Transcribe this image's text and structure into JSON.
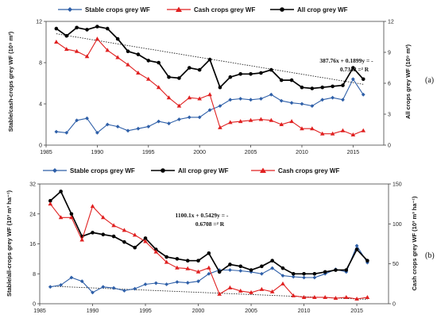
{
  "chart_data": [
    {
      "type": "line",
      "panel_label": "(a)",
      "x": [
        1986,
        1987,
        1988,
        1989,
        1990,
        1991,
        1992,
        1993,
        1994,
        1995,
        1996,
        1997,
        1998,
        1999,
        2000,
        2001,
        2002,
        2003,
        2004,
        2005,
        2006,
        2007,
        2008,
        2009,
        2010,
        2011,
        2012,
        2013,
        2014,
        2015,
        2016
      ],
      "xlim": [
        1985,
        2018
      ],
      "xticks": [
        1985,
        1990,
        1995,
        2000,
        2005,
        2010,
        2015
      ],
      "ylabel": "Stable/cash-crops grey WF (10⁹ m³)",
      "y2label": "All crops grey WF (10⁹ m³)",
      "ylim": [
        0,
        12
      ],
      "yticks": [
        0,
        4,
        8,
        12
      ],
      "y2lim": [
        0,
        12
      ],
      "y2ticks": [
        0,
        3,
        6,
        9,
        12
      ],
      "series": [
        {
          "name": "Stable crops grey WF",
          "axis": "left",
          "color": "#2e5fa8",
          "marker": "diamond",
          "values": [
            1.3,
            1.2,
            2.4,
            2.6,
            1.2,
            2.0,
            1.8,
            1.4,
            1.6,
            1.8,
            2.3,
            2.1,
            2.5,
            2.7,
            2.7,
            3.4,
            3.8,
            4.4,
            4.5,
            4.4,
            4.5,
            4.9,
            4.3,
            4.1,
            4.0,
            3.8,
            4.4,
            4.6,
            4.4,
            6.4,
            4.9
          ]
        },
        {
          "name": "Cash crops grey WF",
          "axis": "left",
          "color": "#e02020",
          "marker": "triangle",
          "values": [
            10.0,
            9.3,
            9.1,
            8.6,
            10.3,
            9.2,
            8.5,
            7.8,
            7.0,
            6.4,
            5.6,
            4.6,
            3.8,
            4.6,
            4.5,
            4.9,
            1.7,
            2.2,
            2.3,
            2.4,
            2.5,
            2.4,
            2.0,
            2.3,
            1.6,
            1.6,
            1.1,
            1.1,
            1.4,
            1.0,
            1.4
          ]
        },
        {
          "name": "All crop grey WF",
          "axis": "right",
          "color": "#000000",
          "marker": "circle",
          "values": [
            11.3,
            10.6,
            11.4,
            11.2,
            11.5,
            11.3,
            10.3,
            9.1,
            8.8,
            8.2,
            8.0,
            6.6,
            6.5,
            7.5,
            7.3,
            8.3,
            5.6,
            6.6,
            6.9,
            6.9,
            7.0,
            7.3,
            6.3,
            6.3,
            5.6,
            5.5,
            5.6,
            5.7,
            5.8,
            7.5,
            6.4
          ]
        }
      ],
      "trendline": {
        "from": [
          1986,
          10.8
        ],
        "to": [
          2016,
          5.9
        ],
        "equation": "387.76x + 0.1899y = -",
        "r2": "0.7348 =² R"
      }
    },
    {
      "type": "line",
      "panel_label": "(b)",
      "x": [
        1986,
        1987,
        1988,
        1989,
        1990,
        1991,
        1992,
        1993,
        1994,
        1995,
        1996,
        1997,
        1998,
        1999,
        2000,
        2001,
        2002,
        2003,
        2004,
        2005,
        2006,
        2007,
        2008,
        2009,
        2010,
        2011,
        2012,
        2013,
        2014,
        2015,
        2016
      ],
      "xlim": [
        1985,
        2018
      ],
      "xticks": [
        1985,
        1990,
        1995,
        2000,
        2005,
        2010,
        2015
      ],
      "ylabel": "Stable/all-crops grey WF (10³ m³ ha⁻¹)",
      "y2label": "Cash crops grey WF (10³ m³ ha⁻¹)",
      "ylim": [
        0,
        32
      ],
      "yticks": [
        0,
        8,
        16,
        24,
        32
      ],
      "y2lim": [
        0,
        150
      ],
      "y2ticks": [
        0,
        50,
        100,
        150
      ],
      "series": [
        {
          "name": "Stable crops grey WF",
          "axis": "left",
          "color": "#2e5fa8",
          "marker": "diamond",
          "values": [
            4.5,
            5.0,
            7.0,
            6.0,
            3.0,
            4.5,
            4.2,
            3.5,
            4.0,
            5.2,
            5.5,
            5.2,
            5.8,
            5.6,
            6.0,
            8.0,
            9.0,
            9.0,
            8.8,
            8.5,
            8.0,
            9.5,
            7.5,
            7.2,
            7.0,
            7.0,
            8.0,
            9.2,
            8.5,
            15.5,
            11.0
          ]
        },
        {
          "name": "All crop grey WF",
          "axis": "left",
          "color": "#000000",
          "marker": "circle",
          "values": [
            27.5,
            30.0,
            24.0,
            18.0,
            19.0,
            18.5,
            18.0,
            16.5,
            15.0,
            17.5,
            14.5,
            12.5,
            12.0,
            11.5,
            11.5,
            13.5,
            8.5,
            10.5,
            10.0,
            9.0,
            10.0,
            11.5,
            9.5,
            8.0,
            8.0,
            8.0,
            8.5,
            9.0,
            9.0,
            14.5,
            11.5
          ]
        },
        {
          "name": "Cash crops grey WF",
          "axis": "right",
          "color": "#e02020",
          "marker": "triangle",
          "values": [
            125,
            108,
            108,
            80,
            122,
            108,
            98,
            92,
            86,
            78,
            65,
            52,
            45,
            44,
            40,
            45,
            12,
            20,
            16,
            14,
            18,
            15,
            25,
            10,
            8,
            8,
            8,
            7,
            8,
            6,
            8
          ]
        }
      ],
      "trendline": {
        "from": [
          1986,
          22.0
        ],
        "to": [
          2016,
          5.5
        ],
        "equation": "1100.1x + 0.5429y = -",
        "r2": "0.6708 =² R"
      }
    }
  ]
}
